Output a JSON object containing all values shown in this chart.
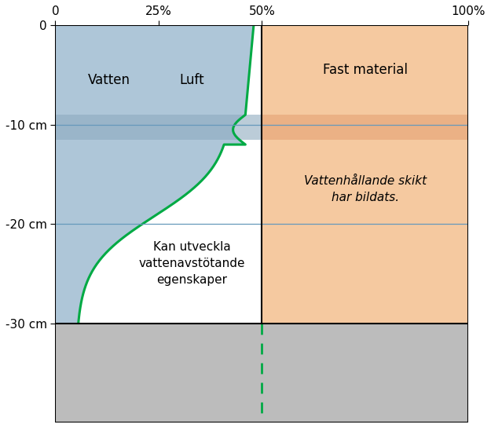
{
  "xlim": [
    0,
    100
  ],
  "ylim": [
    -40,
    0
  ],
  "color_blue": "#aec6d8",
  "color_orange": "#f5c9a0",
  "color_gray": "#bcbcbc",
  "color_green": "#00aa44",
  "color_blue_line": "#6699bb",
  "color_gray_band_blue": "#8eaabf",
  "color_orange_band": "#e8a87a",
  "label_vatten": "Vatten",
  "label_luft": "Luft",
  "label_fast": "Fast material",
  "label_vattenhallande": "Vattenhållande skikt\nhar bildats.",
  "label_kan": "Kan utveckla\nvattenavstötande\negenskaper",
  "x_ticks": [
    0,
    25,
    50,
    100
  ],
  "x_tick_labels": [
    "0",
    "25%",
    "50%",
    "100%"
  ],
  "y_ticks": [
    0,
    -10,
    -20,
    -30
  ],
  "y_tick_labels": [
    "0",
    "-10 cm",
    "-20 cm",
    "-30 cm"
  ]
}
